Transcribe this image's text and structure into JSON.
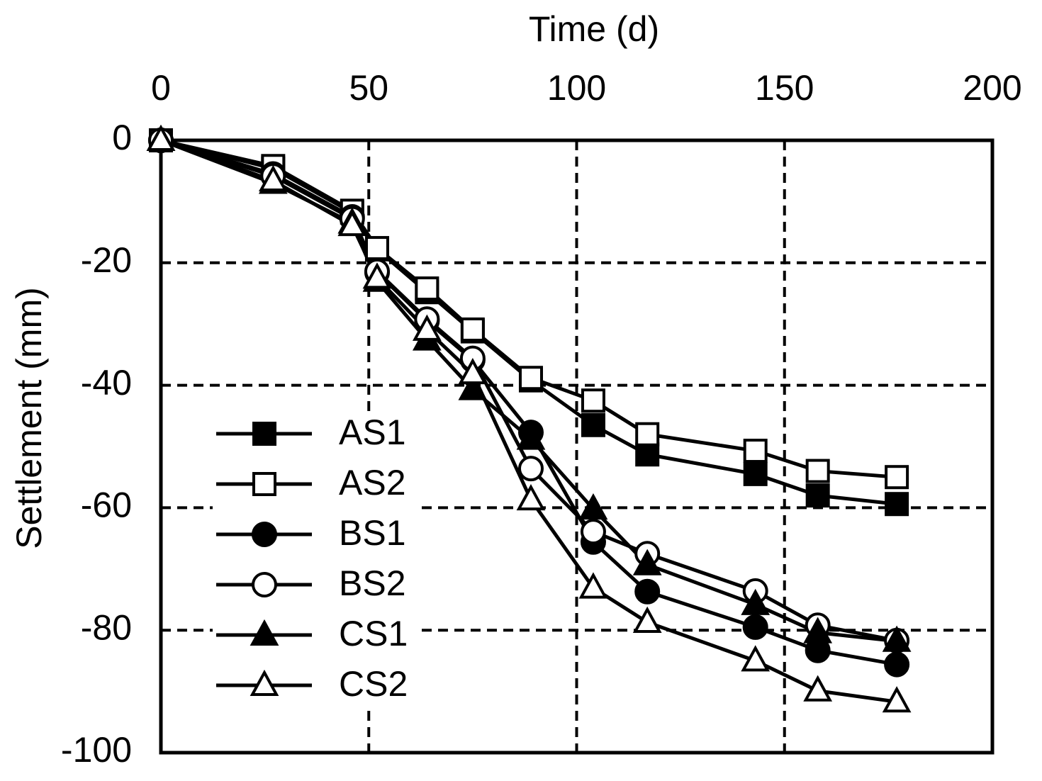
{
  "chart_data": {
    "type": "line",
    "x_label": "Time (d)",
    "y_label": "Settlement (mm)",
    "xlim": [
      0,
      200
    ],
    "xticks": [
      0,
      50,
      100,
      150,
      200
    ],
    "ylim": [
      -100,
      0
    ],
    "yticks": [
      0,
      -20,
      -40,
      -60,
      -80,
      -100
    ],
    "grid": true,
    "x_axis_position": "top",
    "legend": "left",
    "x": [
      0,
      27,
      46,
      52,
      64,
      75,
      89,
      104,
      117,
      143,
      158,
      177
    ],
    "series": [
      {
        "name": "AS1",
        "color": "#000000",
        "marker": "square",
        "filled": true,
        "values": [
          0,
          -4.6,
          -11.8,
          -17.8,
          -24.8,
          -31.2,
          -39.2,
          -46.5,
          -51.3,
          -54.5,
          -58,
          -59.4
        ]
      },
      {
        "name": "AS2",
        "color": "#000000",
        "marker": "square",
        "filled": false,
        "values": [
          0,
          -4.2,
          -11.5,
          -17.6,
          -24.2,
          -30.9,
          -38.8,
          -42.5,
          -48,
          -50.7,
          -54,
          -55
        ]
      },
      {
        "name": "BS1",
        "color": "#000000",
        "marker": "circle",
        "filled": true,
        "values": [
          0,
          -5.5,
          -12.5,
          -21.6,
          -29.5,
          -35.9,
          -47.7,
          -65.6,
          -73.7,
          -79.5,
          -83.3,
          -85.6
        ]
      },
      {
        "name": "BS2",
        "color": "#000000",
        "marker": "circle",
        "filled": false,
        "values": [
          0,
          -5.8,
          -12.8,
          -21.4,
          -29.2,
          -35.6,
          -53.6,
          -63.9,
          -67.5,
          -73.6,
          -79.2,
          -81.7
        ]
      },
      {
        "name": "CS1",
        "color": "#000000",
        "marker": "triangle",
        "filled": true,
        "values": [
          0,
          -7,
          -13.5,
          -23,
          -32.6,
          -40.7,
          -48.8,
          -60.2,
          -69.3,
          -75.8,
          -80.4,
          -81.8
        ]
      },
      {
        "name": "CS2",
        "color": "#000000",
        "marker": "triangle",
        "filled": false,
        "values": [
          0,
          -6.6,
          -13.9,
          -22.5,
          -31,
          -38.1,
          -58.7,
          -73.1,
          -78.7,
          -85,
          -89.9,
          -91.7
        ]
      }
    ]
  }
}
